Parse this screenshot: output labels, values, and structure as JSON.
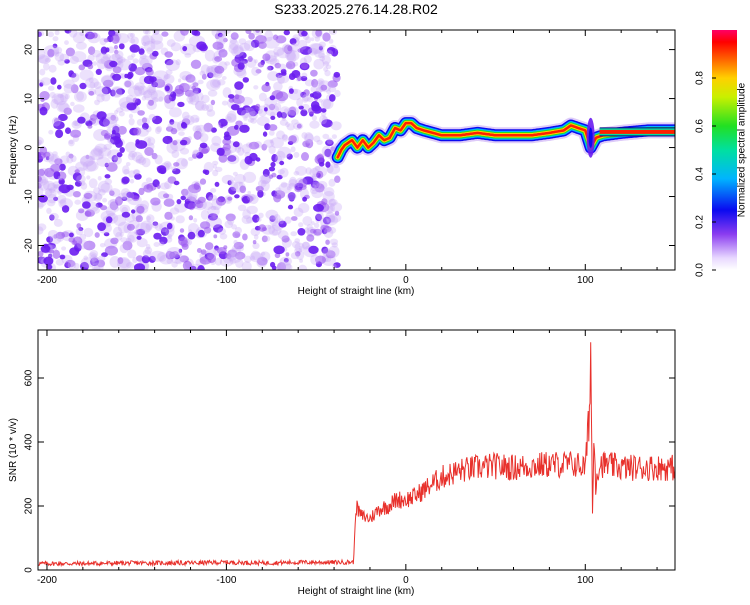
{
  "title": "S233.2025.276.14.28.R02",
  "colors": {
    "background": "#ffffff",
    "axis": "#000000",
    "snr_line": "#e8312c",
    "scatter": "#7a2ee0"
  },
  "chart_data": [
    {
      "type": "heatmap",
      "name": "spectrogram",
      "title": "S233.2025.276.14.28.R02",
      "xlabel": "Height of straight line (km)",
      "ylabel": "Frequency (Hz)",
      "xlim": [
        -205,
        150
      ],
      "ylim": [
        -25,
        24
      ],
      "xticks": [
        -200,
        -100,
        0,
        100
      ],
      "xtick_labels": [
        "-200",
        "-100",
        "0",
        "100"
      ],
      "yticks": [
        -20,
        -10,
        0,
        10,
        20
      ],
      "ytick_labels": [
        "-20",
        "-10",
        "0",
        "10",
        "20"
      ],
      "noise_region_x": [
        -205,
        -38
      ],
      "ridge": {
        "description": "dominant frequency vs height",
        "x": [
          -38,
          -36,
          -34,
          -30,
          -27,
          -24,
          -21,
          -18,
          -15,
          -12,
          -9,
          -6,
          -3,
          0,
          3,
          6,
          10,
          15,
          20,
          30,
          40,
          50,
          60,
          70,
          80,
          88,
          92,
          96,
          100,
          103,
          106,
          110,
          120,
          135,
          150
        ],
        "y": [
          -2,
          -0.5,
          0.5,
          1.5,
          0,
          1.5,
          0,
          1,
          2.5,
          1.5,
          2,
          4,
          3.5,
          5,
          5,
          4,
          3.5,
          3,
          2.5,
          2.5,
          3,
          2.5,
          2.5,
          2.5,
          3,
          3.5,
          4.5,
          4,
          3.5,
          0,
          2,
          2.5,
          3,
          3.5,
          3.5
        ]
      },
      "colorbar": {
        "label": "Normalized spectral amplitude",
        "range": [
          0,
          1
        ],
        "ticks": [
          0.0,
          0.2,
          0.4,
          0.6,
          0.8
        ],
        "tick_labels": [
          "0.0",
          "0.2",
          "0.4",
          "0.6",
          "0.8"
        ]
      }
    },
    {
      "type": "line",
      "name": "snr",
      "xlabel": "Height of straight line (km)",
      "ylabel": "SNR (10 * v/v)",
      "xlim": [
        -205,
        150
      ],
      "ylim": [
        0,
        750
      ],
      "xticks": [
        -200,
        -100,
        0,
        100
      ],
      "xtick_labels": [
        "-200",
        "-100",
        "0",
        "100"
      ],
      "yticks": [
        0,
        200,
        400,
        600
      ],
      "ytick_labels": [
        "0",
        "200",
        "400",
        "600"
      ],
      "series": [
        {
          "name": "SNR",
          "x": [
            -205,
            -180,
            -150,
            -120,
            -100,
            -80,
            -60,
            -40,
            -29,
            -28,
            -25,
            -20,
            -15,
            -10,
            -5,
            0,
            5,
            10,
            15,
            20,
            25,
            30,
            40,
            50,
            60,
            70,
            80,
            90,
            95,
            100,
            102,
            103,
            104,
            105,
            106,
            108,
            110,
            120,
            130,
            140,
            150
          ],
          "y": [
            20,
            20,
            22,
            22,
            24,
            22,
            24,
            24,
            25,
            200,
            170,
            160,
            190,
            200,
            220,
            220,
            230,
            250,
            270,
            290,
            300,
            310,
            320,
            325,
            320,
            325,
            330,
            330,
            330,
            320,
            450,
            690,
            200,
            420,
            300,
            330,
            330,
            320,
            320,
            320,
            320
          ]
        }
      ]
    }
  ]
}
